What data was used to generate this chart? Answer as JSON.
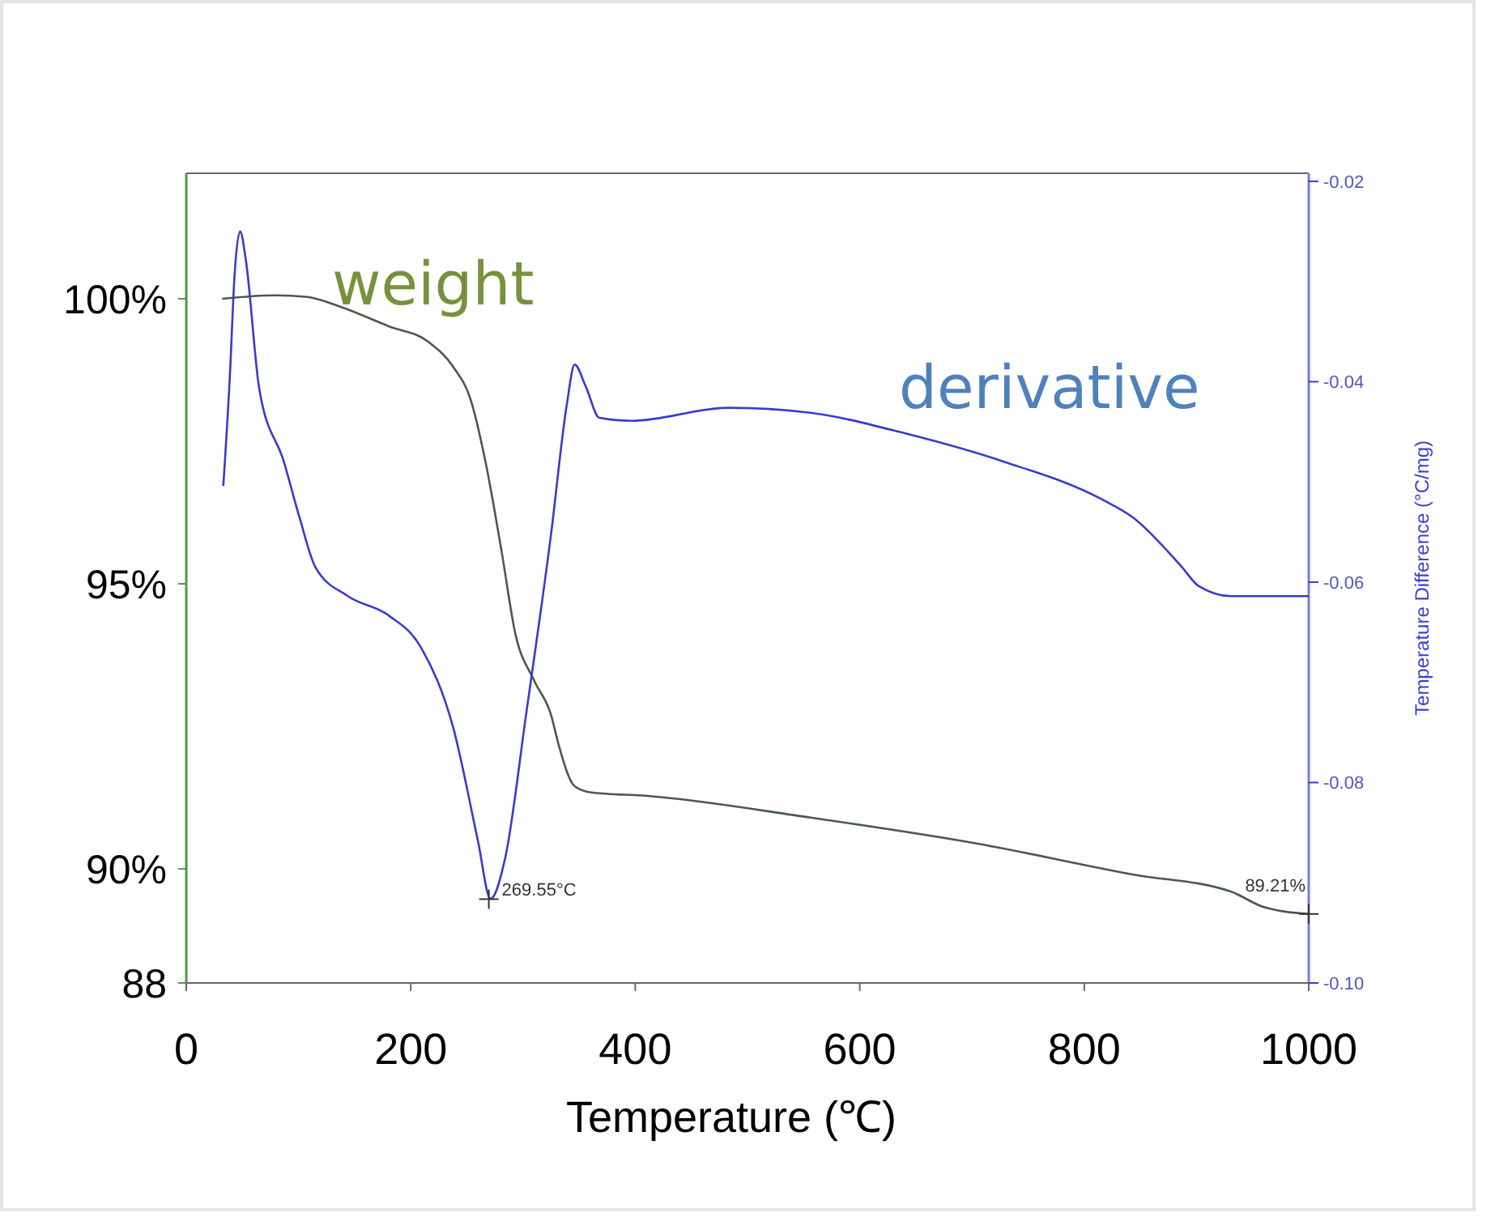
{
  "chart_data": {
    "type": "line",
    "xlabel": "Temperature (℃)",
    "y2label": "Temperature Difference (°C/mg)",
    "xlim": [
      0,
      1000
    ],
    "xticks": [
      0,
      200,
      400,
      600,
      800,
      1000
    ],
    "ylim": [
      88,
      102.2
    ],
    "yticks": [
      {
        "value": 88,
        "label": "88"
      },
      {
        "value": 90,
        "label": "90%"
      },
      {
        "value": 95,
        "label": "95%"
      },
      {
        "value": 100,
        "label": "100%"
      }
    ],
    "y2lim": [
      -0.1,
      -0.0192
    ],
    "y2ticks": [
      {
        "value": -0.1,
        "label": "-0.10"
      },
      -0.08,
      -0.06,
      -0.04,
      -0.02
    ],
    "grid": false,
    "marker": "none",
    "line_style": "solid",
    "series": [
      {
        "name": "weight",
        "color": "#4a5a4a",
        "x": [
          32,
          79,
          108,
          137,
          180,
          216,
          238,
          253,
          267,
          281,
          293,
          310,
          325,
          332,
          346,
          361,
          411,
          556,
          700,
          844,
          931,
          960,
          1000
        ],
        "values": [
          100,
          100.06,
          100.03,
          99.86,
          99.52,
          99.24,
          98.8,
          98.25,
          97.1,
          95.56,
          94.14,
          93.3,
          92.7,
          92.16,
          91.45,
          91.34,
          91.28,
          90.9,
          90.46,
          89.9,
          89.6,
          89.33,
          89.21
        ]
      },
      {
        "name": "derivative",
        "color": "#3a3acc",
        "axis": "y2",
        "x": [
          33,
          39,
          43,
          48,
          53,
          65,
          87,
          101,
          115,
          144,
          180,
          209,
          238,
          260,
          271,
          284,
          303,
          325,
          339,
          346,
          356,
          368,
          397,
          483,
          556,
          642,
          729,
          815,
          844,
          887,
          902,
          931,
          1000
        ],
        "values": [
          -0.0504,
          -0.0391,
          -0.0294,
          -0.025,
          -0.0278,
          -0.0407,
          -0.048,
          -0.0536,
          -0.0585,
          -0.0614,
          -0.0633,
          -0.0665,
          -0.0746,
          -0.0859,
          -0.0916,
          -0.0876,
          -0.073,
          -0.0552,
          -0.0423,
          -0.0383,
          -0.0405,
          -0.0436,
          -0.0439,
          -0.0426,
          -0.0431,
          -0.0452,
          -0.048,
          -0.0517,
          -0.0536,
          -0.0585,
          -0.0604,
          -0.0614,
          -0.0614
        ]
      }
    ],
    "annotations": [
      {
        "text": "269.55°C",
        "x": 269.55,
        "y": 89.47
      },
      {
        "text": "89.21%",
        "x": 1000,
        "y": 89.21
      }
    ]
  }
}
